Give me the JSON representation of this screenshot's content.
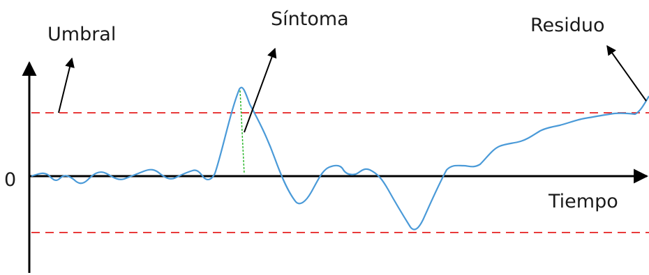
{
  "labels": {
    "threshold": "Umbral",
    "symptom": "Síntoma",
    "residual": "Residuo",
    "zero": "0",
    "time": "Tiempo"
  },
  "colors": {
    "residual_curve": "#4a9ad8",
    "threshold_lines": "#e83a3a",
    "symptom_marker": "#2eb82e",
    "axes": "#000000",
    "text": "#1a1a1a"
  }
}
